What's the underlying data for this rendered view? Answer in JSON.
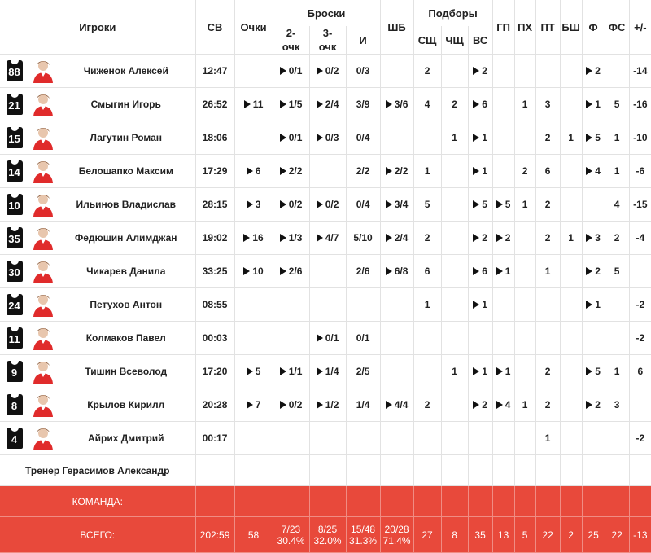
{
  "table": {
    "header": {
      "group_shots": "Броски",
      "group_rebounds": "Подборы",
      "columns": [
        "Игроки",
        "СВ",
        "Очки",
        "2-очк",
        "3-очк",
        "И",
        "ШБ",
        "СЩ",
        "ЧЩ",
        "ВС",
        "ГП",
        "ПХ",
        "ПТ",
        "БШ",
        "Ф",
        "ФС",
        "+/-"
      ]
    },
    "rows": [
      {
        "number": 88,
        "name": "Чиженок Алексей",
        "stats": [
          "12:47",
          null,
          "0/1",
          "0/2",
          "0/3",
          null,
          2,
          null,
          2,
          null,
          null,
          null,
          null,
          2,
          null,
          -14
        ]
      },
      {
        "number": 21,
        "name": "Смыгин Игорь",
        "stats": [
          "26:52",
          11,
          "1/5",
          "2/4",
          "3/9",
          "3/6",
          4,
          2,
          6,
          null,
          1,
          3,
          null,
          1,
          5,
          -16
        ]
      },
      {
        "number": 15,
        "name": "Лагутин Роман",
        "stats": [
          "18:06",
          null,
          "0/1",
          "0/3",
          "0/4",
          null,
          null,
          1,
          1,
          null,
          null,
          2,
          1,
          5,
          1,
          -10
        ]
      },
      {
        "number": 14,
        "name": "Белошапко Максим",
        "stats": [
          "17:29",
          6,
          "2/2",
          null,
          "2/2",
          "2/2",
          1,
          null,
          1,
          null,
          2,
          6,
          null,
          4,
          1,
          -6
        ]
      },
      {
        "number": 10,
        "name": "Ильинов Владислав",
        "stats": [
          "28:15",
          3,
          "0/2",
          "0/2",
          "0/4",
          "3/4",
          5,
          null,
          5,
          5,
          1,
          2,
          null,
          null,
          4,
          -15
        ]
      },
      {
        "number": 35,
        "name": "Федюшин Алимджан",
        "stats": [
          "19:02",
          16,
          "1/3",
          "4/7",
          "5/10",
          "2/4",
          2,
          null,
          2,
          2,
          null,
          2,
          1,
          3,
          2,
          -4
        ]
      },
      {
        "number": 30,
        "name": "Чикарев Данила",
        "stats": [
          "33:25",
          10,
          "2/6",
          null,
          "2/6",
          "6/8",
          6,
          null,
          6,
          1,
          null,
          1,
          null,
          2,
          5,
          null
        ]
      },
      {
        "number": 24,
        "name": "Петухов Антон",
        "stats": [
          "08:55",
          null,
          null,
          null,
          null,
          null,
          1,
          null,
          1,
          null,
          null,
          null,
          null,
          1,
          null,
          -2
        ]
      },
      {
        "number": 11,
        "name": "Колмаков Павел",
        "stats": [
          "00:03",
          null,
          null,
          "0/1",
          "0/1",
          null,
          null,
          null,
          null,
          null,
          null,
          null,
          null,
          null,
          null,
          -2
        ]
      },
      {
        "number": 9,
        "name": "Тишин Всеволод",
        "stats": [
          "17:20",
          5,
          "1/1",
          "1/4",
          "2/5",
          null,
          null,
          1,
          1,
          1,
          null,
          2,
          null,
          5,
          1,
          6
        ]
      },
      {
        "number": 8,
        "name": "Крылов Кирилл",
        "stats": [
          "20:28",
          7,
          "0/2",
          "1/2",
          "1/4",
          "4/4",
          2,
          null,
          2,
          4,
          1,
          2,
          null,
          2,
          3,
          null
        ]
      },
      {
        "number": 4,
        "name": "Айрих Дмитрий",
        "stats": [
          "00:17",
          null,
          null,
          null,
          null,
          null,
          null,
          null,
          null,
          null,
          null,
          1,
          null,
          null,
          null,
          -2
        ]
      }
    ],
    "coach": "Тренер Герасимов Александр",
    "team_label": "КОМАНДА:",
    "total": {
      "label": "ВСЕГО:",
      "stats": [
        "202:59",
        58,
        {
          "made": "7/23",
          "pct": "30.4%"
        },
        {
          "made": "8/25",
          "pct": "32.0%"
        },
        {
          "made": "15/48",
          "pct": "31.3%"
        },
        {
          "made": "20/28",
          "pct": "71.4%"
        },
        27,
        8,
        35,
        13,
        5,
        22,
        2,
        25,
        22,
        -13
      ]
    }
  }
}
